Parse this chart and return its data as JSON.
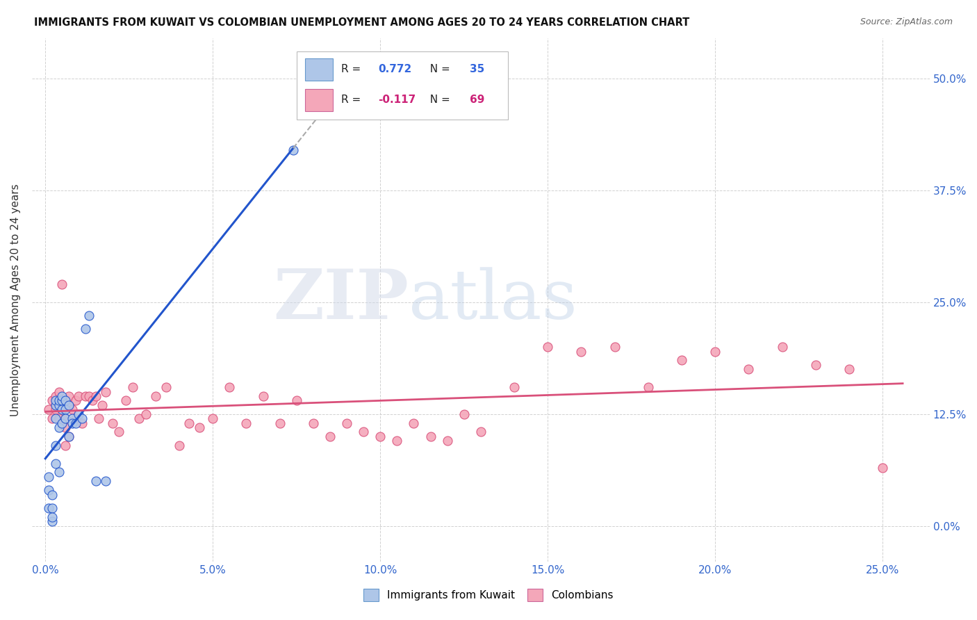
{
  "title": "IMMIGRANTS FROM KUWAIT VS COLOMBIAN UNEMPLOYMENT AMONG AGES 20 TO 24 YEARS CORRELATION CHART",
  "source": "Source: ZipAtlas.com",
  "xlabel_tick_vals": [
    0.0,
    0.05,
    0.1,
    0.15,
    0.2,
    0.25
  ],
  "ylabel_tick_vals": [
    0.0,
    0.125,
    0.25,
    0.375,
    0.5
  ],
  "xlim": [
    -0.004,
    0.264
  ],
  "ylim": [
    -0.04,
    0.545
  ],
  "r_kuwait": 0.772,
  "n_kuwait": 35,
  "r_colombian": -0.117,
  "n_colombian": 69,
  "color_kuwait": "#aec6e8",
  "color_colombian": "#f4a7b9",
  "line_color_kuwait": "#2255cc",
  "line_color_colombian": "#d9507a",
  "scatter_size": 55,
  "kuwait_x": [
    0.001,
    0.001,
    0.001,
    0.002,
    0.002,
    0.002,
    0.002,
    0.003,
    0.003,
    0.003,
    0.003,
    0.003,
    0.004,
    0.004,
    0.004,
    0.004,
    0.005,
    0.005,
    0.005,
    0.005,
    0.006,
    0.006,
    0.006,
    0.007,
    0.007,
    0.008,
    0.008,
    0.009,
    0.01,
    0.011,
    0.012,
    0.013,
    0.015,
    0.018,
    0.074
  ],
  "kuwait_y": [
    0.02,
    0.055,
    0.04,
    0.005,
    0.02,
    0.035,
    0.01,
    0.135,
    0.14,
    0.12,
    0.09,
    0.07,
    0.135,
    0.14,
    0.11,
    0.06,
    0.14,
    0.13,
    0.115,
    0.145,
    0.14,
    0.13,
    0.12,
    0.135,
    0.1,
    0.12,
    0.115,
    0.115,
    0.125,
    0.12,
    0.22,
    0.235,
    0.05,
    0.05,
    0.42
  ],
  "colombian_x": [
    0.001,
    0.002,
    0.002,
    0.003,
    0.003,
    0.004,
    0.004,
    0.004,
    0.005,
    0.005,
    0.006,
    0.006,
    0.007,
    0.007,
    0.008,
    0.009,
    0.009,
    0.01,
    0.011,
    0.012,
    0.013,
    0.014,
    0.015,
    0.016,
    0.017,
    0.018,
    0.02,
    0.022,
    0.024,
    0.026,
    0.028,
    0.03,
    0.033,
    0.036,
    0.04,
    0.043,
    0.046,
    0.05,
    0.055,
    0.06,
    0.065,
    0.07,
    0.075,
    0.08,
    0.085,
    0.09,
    0.095,
    0.1,
    0.105,
    0.11,
    0.115,
    0.12,
    0.125,
    0.13,
    0.14,
    0.15,
    0.16,
    0.17,
    0.18,
    0.19,
    0.2,
    0.21,
    0.22,
    0.23,
    0.24,
    0.25,
    0.005,
    0.006,
    0.007
  ],
  "colombian_y": [
    0.13,
    0.14,
    0.12,
    0.145,
    0.13,
    0.135,
    0.15,
    0.12,
    0.14,
    0.135,
    0.11,
    0.12,
    0.145,
    0.135,
    0.13,
    0.14,
    0.12,
    0.145,
    0.115,
    0.145,
    0.145,
    0.14,
    0.145,
    0.12,
    0.135,
    0.15,
    0.115,
    0.105,
    0.14,
    0.155,
    0.12,
    0.125,
    0.145,
    0.155,
    0.09,
    0.115,
    0.11,
    0.12,
    0.155,
    0.115,
    0.145,
    0.115,
    0.14,
    0.115,
    0.1,
    0.115,
    0.105,
    0.1,
    0.095,
    0.115,
    0.1,
    0.095,
    0.125,
    0.105,
    0.155,
    0.2,
    0.195,
    0.2,
    0.155,
    0.185,
    0.195,
    0.175,
    0.2,
    0.18,
    0.175,
    0.065,
    0.27,
    0.09,
    0.1
  ],
  "watermark_zip": "ZIP",
  "watermark_atlas": "atlas",
  "legend_label_kuwait": "Immigrants from Kuwait",
  "legend_label_colombian": "Colombians"
}
